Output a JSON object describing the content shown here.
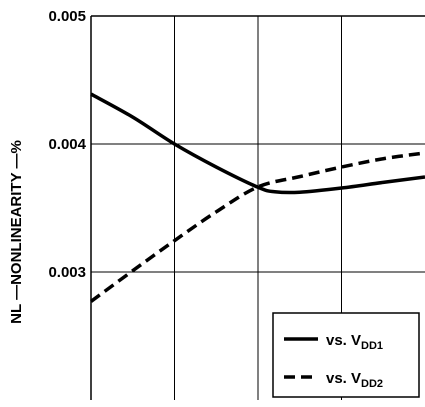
{
  "chart_data": {
    "type": "line",
    "title": "",
    "ylabel": "NL —NONLINEARITY —%",
    "xlabel": "",
    "ylim": [
      0.002,
      0.005
    ],
    "yticks": [
      "0.005",
      "0.004",
      "0.003"
    ],
    "ytick_values": [
      0.005,
      0.004,
      0.003
    ],
    "xlim": [
      0,
      4
    ],
    "grid": true,
    "legend_position": "bottom-right",
    "legend": [
      {
        "prefix": "vs. V",
        "sub": "DD1"
      },
      {
        "prefix": "vs. V",
        "sub": "DD2"
      }
    ],
    "series": [
      {
        "name": "vs. VDD1",
        "style": "solid",
        "x": [
          0,
          0.5,
          1.0,
          1.5,
          2.0,
          2.2,
          2.5,
          3.0,
          3.5,
          4.0
        ],
        "y": [
          0.00439,
          0.00421,
          0.004,
          0.00382,
          0.003662,
          0.003627,
          0.003623,
          0.003656,
          0.0037,
          0.003742
        ]
      },
      {
        "name": "vs. VDD2",
        "style": "dashed",
        "x": [
          0,
          0.5,
          1.0,
          1.5,
          2.0,
          2.5,
          3.0,
          3.5,
          4.0
        ],
        "y": [
          0.00277,
          0.00301,
          0.003245,
          0.00347,
          0.003665,
          0.003745,
          0.00382,
          0.003885,
          0.00393
        ]
      }
    ]
  }
}
